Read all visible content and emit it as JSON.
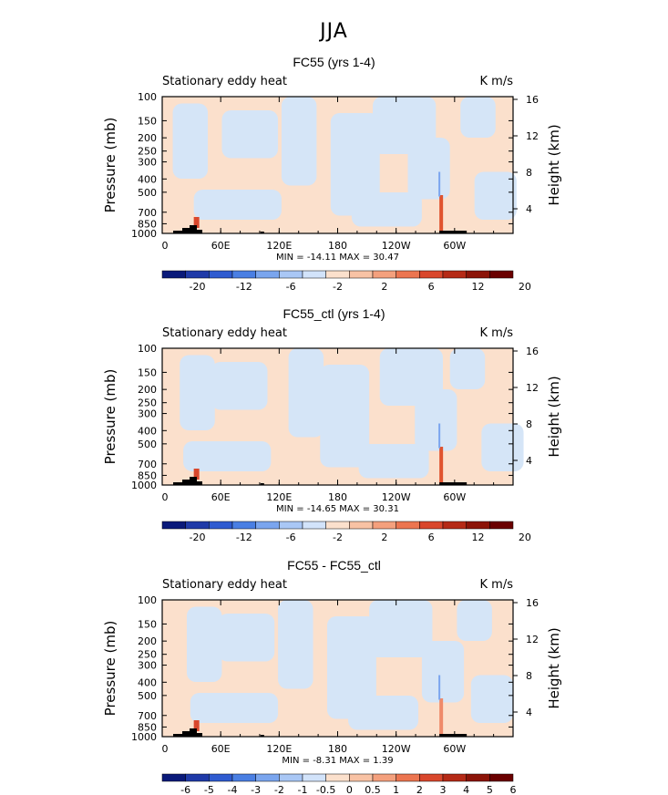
{
  "main_title": "JJA",
  "chart_data": [
    {
      "type": "heatmap",
      "title": "FC55 (yrs 1-4)",
      "left_string": "Stationary eddy heat",
      "right_string": "K m/s",
      "ylabel": "Pressure (mb)",
      "ylabel_right": "Height (km)",
      "x_ticks": [
        "0",
        "60E",
        "120E",
        "180",
        "120W",
        "60W"
      ],
      "y_ticks": [
        "100",
        "150",
        "200",
        "250",
        "300",
        "400",
        "500",
        "700",
        "850",
        "1000"
      ],
      "y_right_ticks": [
        "16",
        "12",
        "8",
        "4"
      ],
      "ylim": [
        1000,
        100
      ],
      "y_scale": "log",
      "min_max": "MIN = -14.11   MAX = 30.47",
      "colorbar_labels": [
        "-20",
        "-12",
        "-6",
        "-2",
        "2",
        "6",
        "12",
        "20"
      ]
    },
    {
      "type": "heatmap",
      "title": "FC55_ctl (yrs 1-4)",
      "left_string": "Stationary eddy heat",
      "right_string": "K m/s",
      "ylabel": "Pressure (mb)",
      "ylabel_right": "Height (km)",
      "x_ticks": [
        "0",
        "60E",
        "120E",
        "180",
        "120W",
        "60W"
      ],
      "y_ticks": [
        "100",
        "150",
        "200",
        "250",
        "300",
        "400",
        "500",
        "700",
        "850",
        "1000"
      ],
      "y_right_ticks": [
        "16",
        "12",
        "8",
        "4"
      ],
      "ylim": [
        1000,
        100
      ],
      "y_scale": "log",
      "min_max": "MIN = -14.65   MAX = 30.31",
      "colorbar_labels": [
        "-20",
        "-12",
        "-6",
        "-2",
        "2",
        "6",
        "12",
        "20"
      ]
    },
    {
      "type": "heatmap",
      "title": "FC55 - FC55_ctl",
      "left_string": "Stationary eddy heat",
      "right_string": "K m/s",
      "ylabel": "Pressure (mb)",
      "ylabel_right": "Height (km)",
      "x_ticks": [
        "0",
        "60E",
        "120E",
        "180",
        "120W",
        "60W"
      ],
      "y_ticks": [
        "100",
        "150",
        "200",
        "250",
        "300",
        "400",
        "500",
        "700",
        "850",
        "1000"
      ],
      "y_right_ticks": [
        "16",
        "12",
        "8",
        "4"
      ],
      "ylim": [
        1000,
        100
      ],
      "y_scale": "log",
      "min_max": "MIN = -8.31   MAX = 1.39",
      "colorbar_labels": [
        "-6",
        "-5",
        "-4",
        "-3",
        "-2",
        "-1",
        "-0.5",
        "0",
        "0.5",
        "1",
        "2",
        "3",
        "4",
        "5",
        "6"
      ]
    }
  ],
  "colors": {
    "bg_pos": "#fbe0cc",
    "bg_neg": "#d5e5f7",
    "colorbar": [
      "#0a1a7a",
      "#1f3aa8",
      "#2f5bd0",
      "#4a7fe3",
      "#7aa5ee",
      "#a9c7f5",
      "#d2e3fa",
      "#fbe0cc",
      "#f8c2a4",
      "#f4a07d",
      "#ec7550",
      "#d9472c",
      "#b52a16",
      "#8c1408",
      "#6a0000"
    ]
  }
}
